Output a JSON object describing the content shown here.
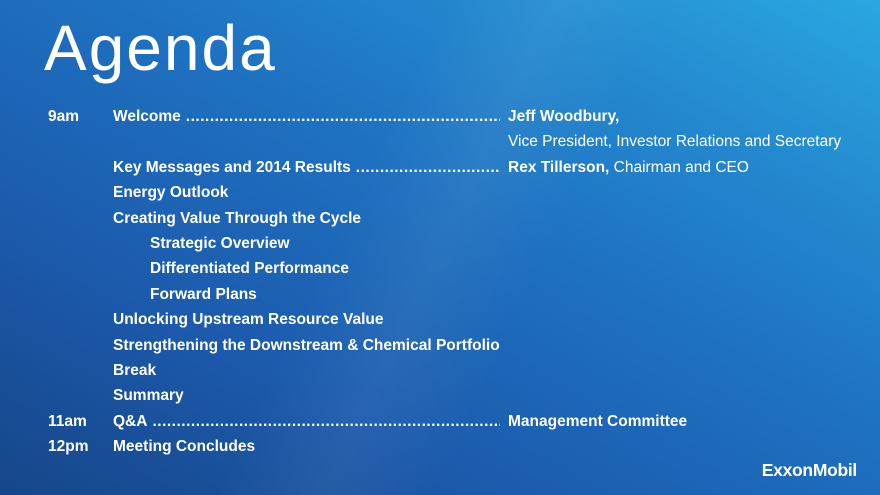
{
  "title": "Agenda",
  "logo": "ExxonMobil",
  "colors": {
    "bg_dark": "#164689",
    "bg_mid": "#1e70c0",
    "bg_light": "#2aa7e1",
    "text": "#ffffff"
  },
  "rows": [
    {
      "time": "9am",
      "label": "Welcome",
      "leader": true,
      "speaker": {
        "bold": "Jeff Woodbury,",
        "regular": ""
      }
    },
    {
      "speaker": {
        "bold": "",
        "regular": "Vice President, Investor Relations and Secretary"
      }
    },
    {
      "label": "Key Messages and 2014 Results",
      "leader": true,
      "speaker": {
        "bold": "Rex Tillerson,",
        "regular": " Chairman and CEO"
      }
    },
    {
      "label": "Energy Outlook"
    },
    {
      "label": "Creating Value Through the Cycle"
    },
    {
      "label": "Strategic Overview",
      "indent": true
    },
    {
      "label": "Differentiated Performance",
      "indent": true
    },
    {
      "label": "Forward Plans",
      "indent": true
    },
    {
      "label": "Unlocking Upstream Resource Value"
    },
    {
      "label": "Strengthening the Downstream & Chemical Portfolio"
    },
    {
      "label": "Break"
    },
    {
      "label": "Summary"
    },
    {
      "time": "11am",
      "label": "Q&A",
      "leader": true,
      "speaker": {
        "bold": "Management Committee",
        "regular": ""
      }
    },
    {
      "time": "12pm",
      "label": "Meeting Concludes"
    }
  ]
}
